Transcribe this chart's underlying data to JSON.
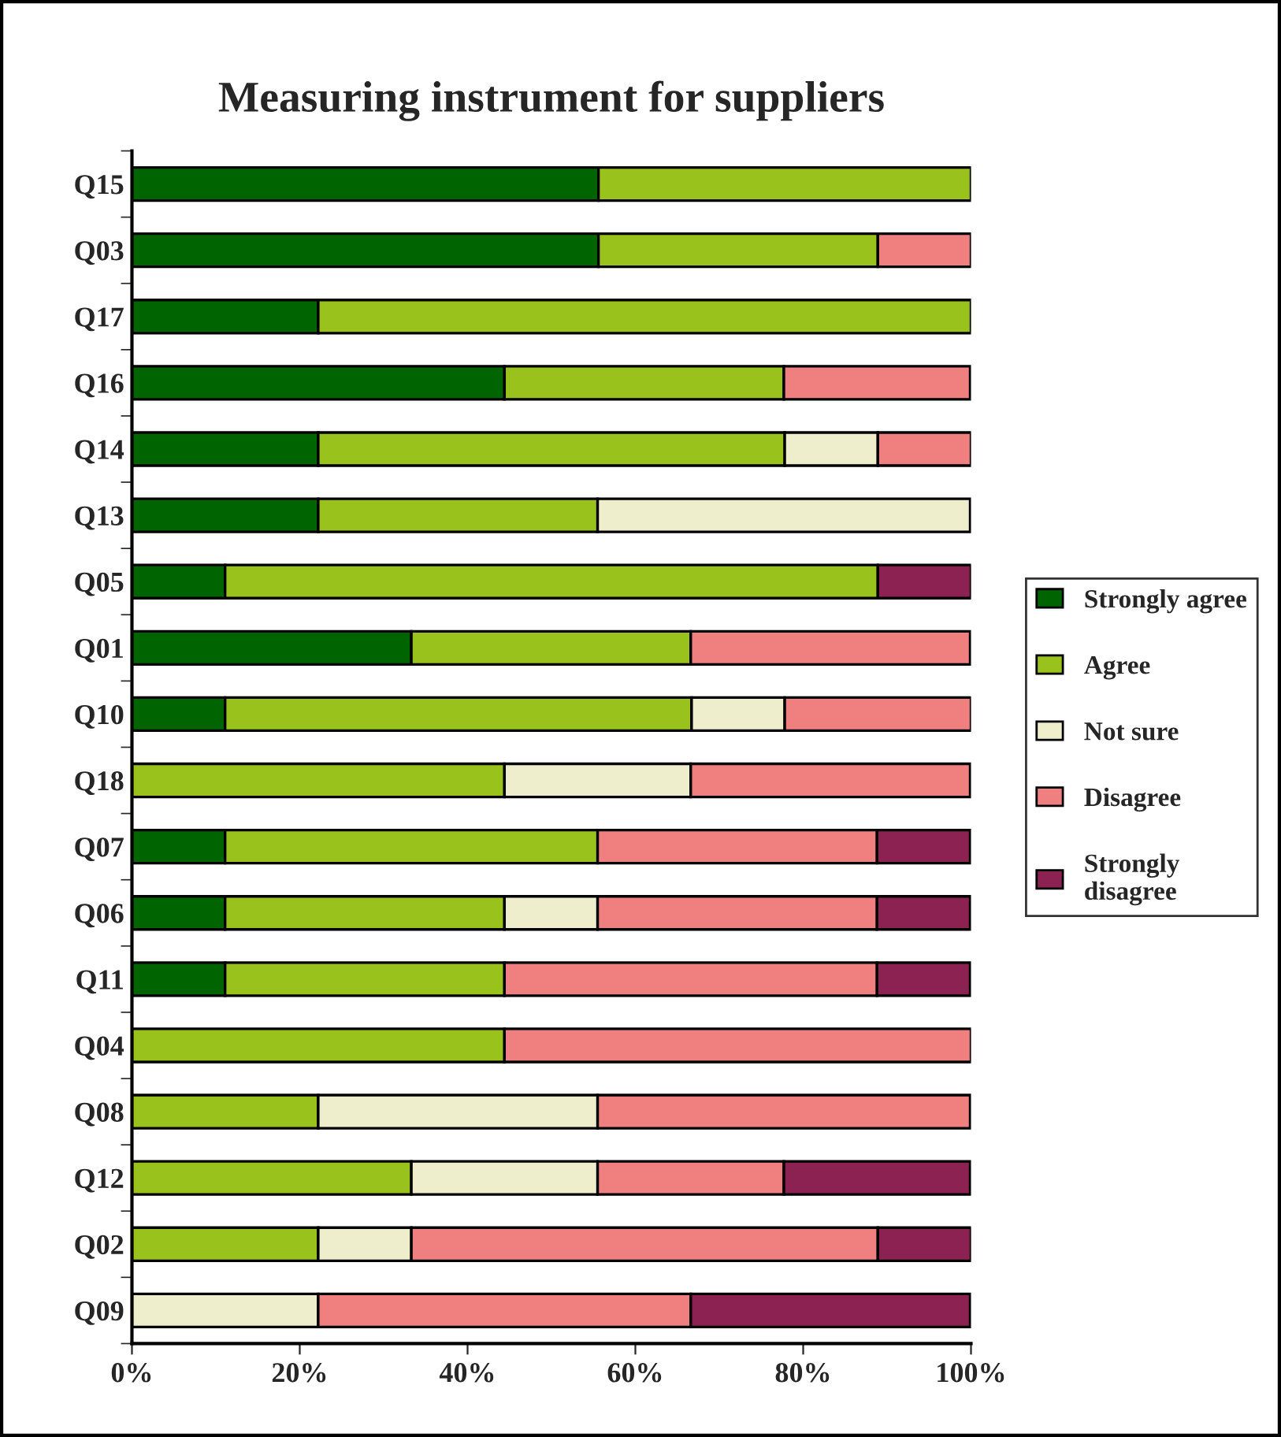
{
  "chart_data": {
    "type": "bar",
    "orientation": "horizontal",
    "stacked": true,
    "title": "Measuring instrument for suppliers",
    "categories": [
      "Q15",
      "Q03",
      "Q17",
      "Q16",
      "Q14",
      "Q13",
      "Q05",
      "Q01",
      "Q10",
      "Q18",
      "Q07",
      "Q06",
      "Q11",
      "Q04",
      "Q08",
      "Q12",
      "Q02",
      "Q09"
    ],
    "series": [
      {
        "name": "Strongly agree",
        "color": "#006400",
        "values": [
          55.6,
          55.6,
          22.2,
          44.4,
          22.2,
          22.2,
          11.1,
          33.3,
          11.1,
          null,
          11.1,
          11.1,
          11.1,
          null,
          null,
          null,
          null,
          null
        ]
      },
      {
        "name": "Agree",
        "color": "#99c21c",
        "values": [
          44.4,
          33.3,
          77.8,
          33.3,
          55.6,
          33.3,
          77.8,
          33.3,
          55.6,
          44.4,
          44.4,
          33.3,
          33.3,
          44.4,
          22.2,
          33.3,
          22.2,
          null
        ]
      },
      {
        "name": "Not sure",
        "color": "#eeeecc",
        "values": [
          null,
          null,
          null,
          null,
          11.1,
          44.4,
          null,
          null,
          11.1,
          22.2,
          null,
          11.1,
          null,
          null,
          33.3,
          22.2,
          11.1,
          22.2
        ]
      },
      {
        "name": "Disagree",
        "color": "#f08080",
        "values": [
          null,
          11.1,
          null,
          22.2,
          11.1,
          null,
          null,
          33.3,
          22.2,
          33.3,
          33.3,
          33.3,
          44.4,
          55.6,
          44.4,
          22.2,
          55.6,
          44.4
        ]
      },
      {
        "name": "Strongly disagree",
        "color": "#8b2252",
        "values": [
          null,
          null,
          null,
          null,
          null,
          null,
          11.1,
          null,
          null,
          null,
          11.1,
          11.1,
          11.1,
          null,
          null,
          22.2,
          11.1,
          33.3
        ]
      }
    ],
    "xlim": [
      0,
      100
    ],
    "xticks": [
      {
        "value": 0,
        "label": "0%"
      },
      {
        "value": 20,
        "label": "20%"
      },
      {
        "value": 40,
        "label": "40%"
      },
      {
        "value": 60,
        "label": "60%"
      },
      {
        "value": 80,
        "label": "80%"
      },
      {
        "value": 100,
        "label": "100%"
      }
    ],
    "legend": "right",
    "grid": false
  }
}
